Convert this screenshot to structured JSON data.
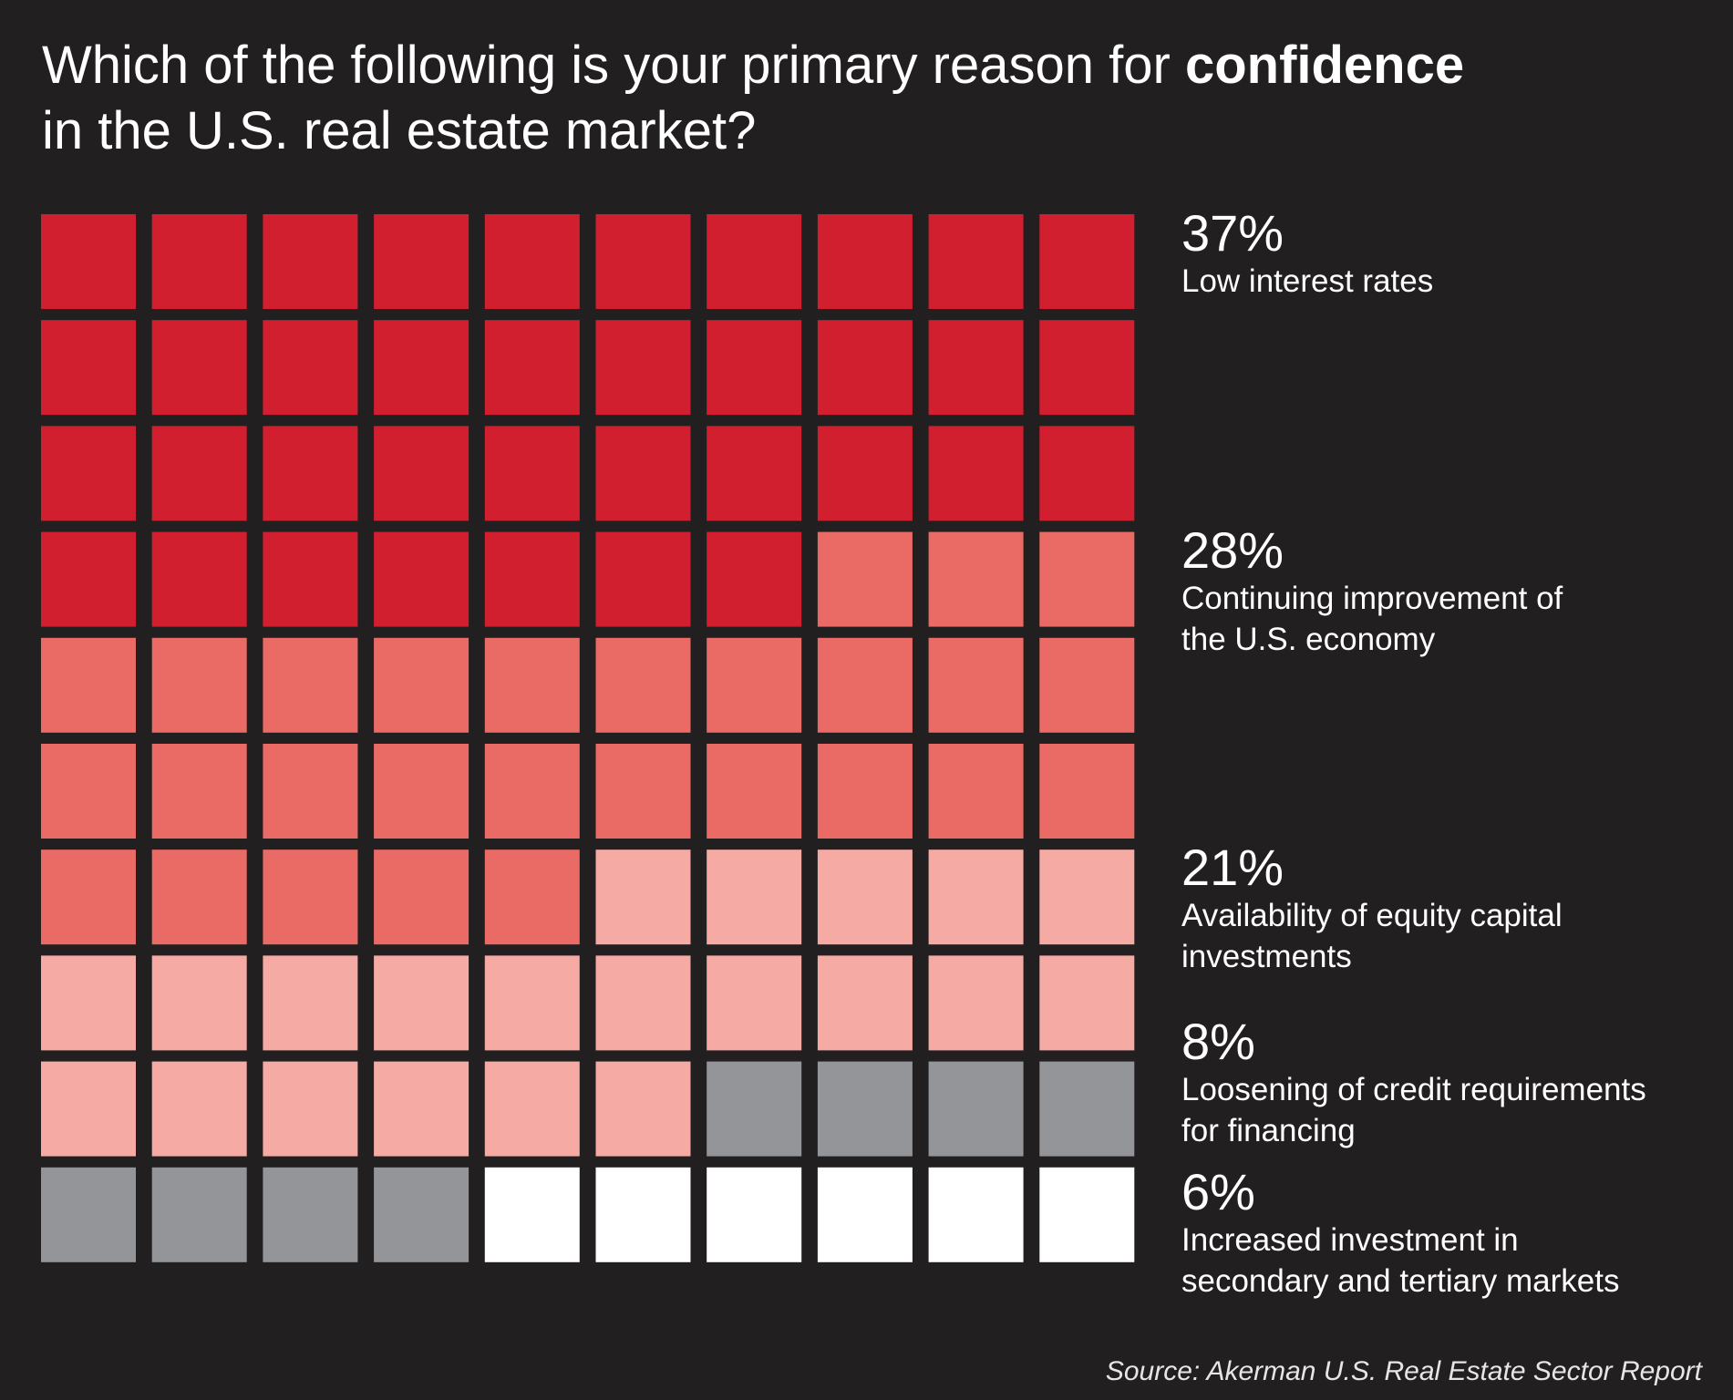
{
  "title": {
    "prefix": "Which of the following is your primary reason for",
    "emphasis": "confidence",
    "line2": "in the U.S. real estate market?"
  },
  "chart_data": {
    "type": "waffle",
    "grid": {
      "rows": 10,
      "cols": 10
    },
    "unit": "%",
    "categories": [
      {
        "label": "Low interest rates",
        "value": 37,
        "display": "37%",
        "color": "#d21f30"
      },
      {
        "label": "Continuing improvement of the U.S. economy",
        "value": 28,
        "display": "28%",
        "color": "#ea6b66"
      },
      {
        "label": "Availability of equity capital investments",
        "value": 21,
        "display": "21%",
        "color": "#f5aaa4"
      },
      {
        "label": "Loosening of credit requirements for financing",
        "value": 8,
        "display": "8%",
        "color": "#939598"
      },
      {
        "label": "Increased investment in secondary and tertiary markets",
        "value": 6,
        "display": "6%",
        "color": "#ffffff"
      }
    ]
  },
  "labels": [
    {
      "pct": "37%",
      "line1": "Low interest rates",
      "line2": ""
    },
    {
      "pct": "28%",
      "line1": "Continuing improvement of",
      "line2": "the U.S. economy"
    },
    {
      "pct": "21%",
      "line1": "Availability of equity capital",
      "line2": "investments"
    },
    {
      "pct": "8%",
      "line1": "Loosening of credit requirements",
      "line2": "for financing"
    },
    {
      "pct": "6%",
      "line1": "Increased investment in",
      "line2": "secondary and tertiary markets"
    }
  ],
  "source": "Source: Akerman U.S. Real Estate Sector Report",
  "colors": {
    "background": "#221f20"
  }
}
